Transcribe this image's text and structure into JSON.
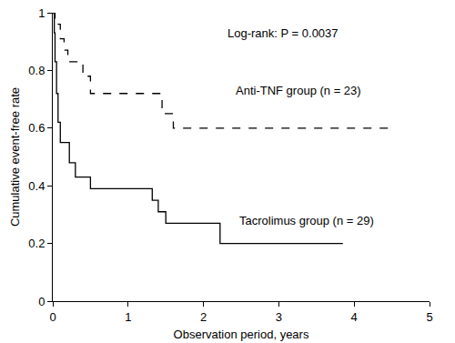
{
  "chart_data": {
    "type": "line",
    "x_label": "Observation period, years",
    "y_label": "Cumulative event-free rate",
    "xlim": [
      0,
      5
    ],
    "xticks": [
      0,
      1,
      2,
      3,
      4,
      5
    ],
    "ylim": [
      0,
      1
    ],
    "yticks": [
      0,
      0.2,
      0.4,
      0.6,
      0.8,
      1
    ],
    "grid": false,
    "series": [
      {
        "name": "Anti-TNF group (n = 23)",
        "color": "#000000",
        "line_style": "dashed",
        "x": [
          0,
          0.03,
          0.1,
          0.15,
          0.2,
          0.4,
          0.5,
          1.45,
          1.6,
          4.5
        ],
        "values": [
          1,
          0.96,
          0.91,
          0.87,
          0.83,
          0.78,
          0.72,
          0.65,
          0.6,
          0.6
        ]
      },
      {
        "name": "Tacrolimus group (n = 29)",
        "color": "#000000",
        "line_style": "solid",
        "x": [
          0,
          0.02,
          0.03,
          0.05,
          0.07,
          0.1,
          0.22,
          0.3,
          0.5,
          1.32,
          1.4,
          1.5,
          2.22,
          3.85
        ],
        "values": [
          1,
          0.93,
          0.83,
          0.72,
          0.62,
          0.55,
          0.48,
          0.43,
          0.39,
          0.35,
          0.31,
          0.27,
          0.2,
          0.2
        ]
      }
    ],
    "annotations": [
      {
        "text": "Log-rank: P = 0.0037",
        "x": 2.3,
        "y": 0.93
      },
      {
        "text": "Anti-TNF group (n = 23)",
        "x": 2.4,
        "y": 0.73
      },
      {
        "text": "Tacrolimus group (n = 29)",
        "x": 2.45,
        "y": 0.28
      }
    ]
  }
}
